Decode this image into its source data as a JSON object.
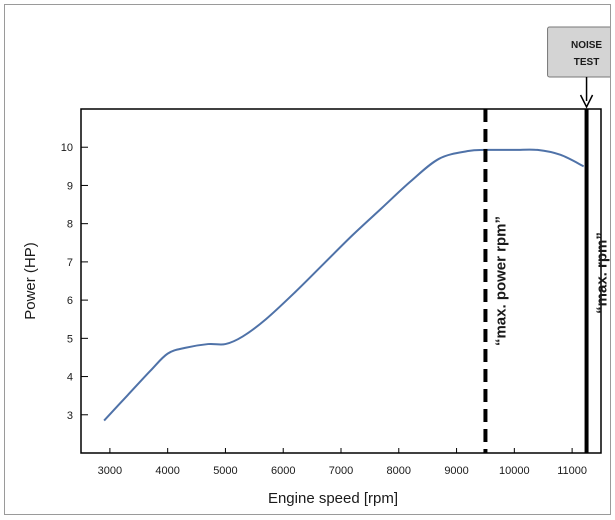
{
  "chart_data": {
    "type": "line",
    "title": "",
    "xlabel": "Engine speed [rpm]",
    "ylabel": "Power (HP)",
    "xlim": [
      2500,
      11500
    ],
    "ylim": [
      2,
      11
    ],
    "xticks": [
      3000,
      4000,
      5000,
      6000,
      7000,
      8000,
      9000,
      10000,
      11000
    ],
    "yticks": [
      3,
      4,
      5,
      6,
      7,
      8,
      9,
      10
    ],
    "x_tick_labels": [
      "3000",
      "4000",
      "5000",
      "6000",
      "7000",
      "8000",
      "9000",
      "10000",
      "11000"
    ],
    "y_tick_labels": [
      "3",
      "4",
      "5",
      "6",
      "7",
      "8",
      "9",
      "10"
    ],
    "grid": false,
    "series": [
      {
        "color": "#4f72a8",
        "x": [
          2900,
          3300,
          3700,
          4000,
          4300,
          4700,
          5000,
          5300,
          5700,
          6200,
          6700,
          7200,
          7700,
          8200,
          8700,
          9200,
          9500,
          10000,
          10400,
          10800,
          11200
        ],
        "y": [
          2.85,
          3.5,
          4.15,
          4.6,
          4.75,
          4.85,
          4.85,
          5.05,
          5.5,
          6.2,
          6.95,
          7.7,
          8.4,
          9.1,
          9.7,
          9.9,
          9.93,
          9.93,
          9.93,
          9.8,
          9.5
        ]
      }
    ],
    "annotations": [
      {
        "text": "“max. power rpm”",
        "x": 9500,
        "style": "dashed"
      },
      {
        "text": "“max. rpm”",
        "x": 11250,
        "style": "solid"
      }
    ],
    "callout": {
      "line1": "NOISE",
      "line2": "TEST",
      "points_to_x": 11250,
      "bg": "#d4d4d4"
    }
  }
}
